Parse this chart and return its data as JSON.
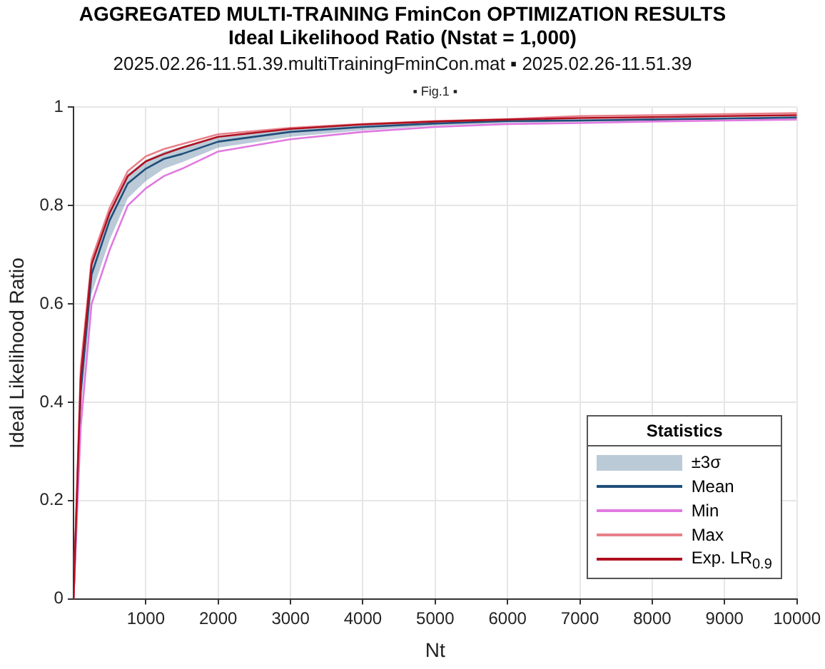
{
  "chart_data": {
    "type": "line",
    "title": "AGGREGATED MULTI-TRAINING FminCon OPTIMIZATION RESULTS\nIdeal Likelihood Ratio (Nstat = 1,000)",
    "subtitle": "2025.02.26-11.51.39.multiTrainingFminCon.mat ▪ 2025.02.26-11.51.39",
    "annotations": [
      "▪ Fig.1 ▪",
      "±3σ"
    ],
    "xlabel": "Nt",
    "ylabel": "Ideal Likelihood Ratio",
    "legend_title": "Statistics",
    "legend": "bottom right",
    "grid": true,
    "marker": "none",
    "line_style": "solid",
    "x": [
      1,
      100,
      250,
      500,
      750,
      1000,
      1250,
      1500,
      2000,
      3000,
      4000,
      5000,
      6000,
      7000,
      8000,
      9000,
      10000
    ],
    "xlim": [
      0,
      10000
    ],
    "xticks": [
      1000,
      2000,
      3000,
      4000,
      5000,
      6000,
      7000,
      8000,
      9000,
      10000
    ],
    "ylim": [
      0,
      1
    ],
    "yticks": [
      0,
      0.2,
      0.4,
      0.6,
      0.8,
      1
    ],
    "series": [
      {
        "name": "Mean",
        "color": "#1f4e79",
        "values": [
          0,
          0.42,
          0.66,
          0.77,
          0.845,
          0.875,
          0.895,
          0.905,
          0.93,
          0.95,
          0.96,
          0.967,
          0.972,
          0.973,
          0.975,
          0.977,
          0.979
        ],
        "lower": [
          0,
          0.38,
          0.62,
          0.73,
          0.815,
          0.85,
          0.875,
          0.888,
          0.918,
          0.94,
          0.953,
          0.962,
          0.968,
          0.97,
          0.973,
          0.975,
          0.977
        ],
        "upper": [
          0,
          0.46,
          0.69,
          0.79,
          0.865,
          0.893,
          0.91,
          0.92,
          0.94,
          0.955,
          0.964,
          0.97,
          0.974,
          0.976,
          0.978,
          0.98,
          0.982
        ]
      },
      {
        "name": "Min",
        "color": "#e07ae0",
        "values": [
          0,
          0.35,
          0.6,
          0.71,
          0.8,
          0.835,
          0.86,
          0.875,
          0.91,
          0.935,
          0.95,
          0.96,
          0.966,
          0.968,
          0.971,
          0.973,
          0.975
        ]
      },
      {
        "name": "Max",
        "color": "#e8808a",
        "values": [
          0,
          0.47,
          0.69,
          0.795,
          0.87,
          0.9,
          0.915,
          0.925,
          0.945,
          0.958,
          0.966,
          0.972,
          0.976,
          0.982,
          0.984,
          0.986,
          0.988
        ]
      },
      {
        "name": "Exp. LR$_{0.9}$",
        "color": "#b01020",
        "values": [
          0,
          0.45,
          0.68,
          0.785,
          0.86,
          0.89,
          0.905,
          0.918,
          0.94,
          0.956,
          0.965,
          0.971,
          0.975,
          0.978,
          0.98,
          0.982,
          0.984
        ]
      }
    ]
  }
}
